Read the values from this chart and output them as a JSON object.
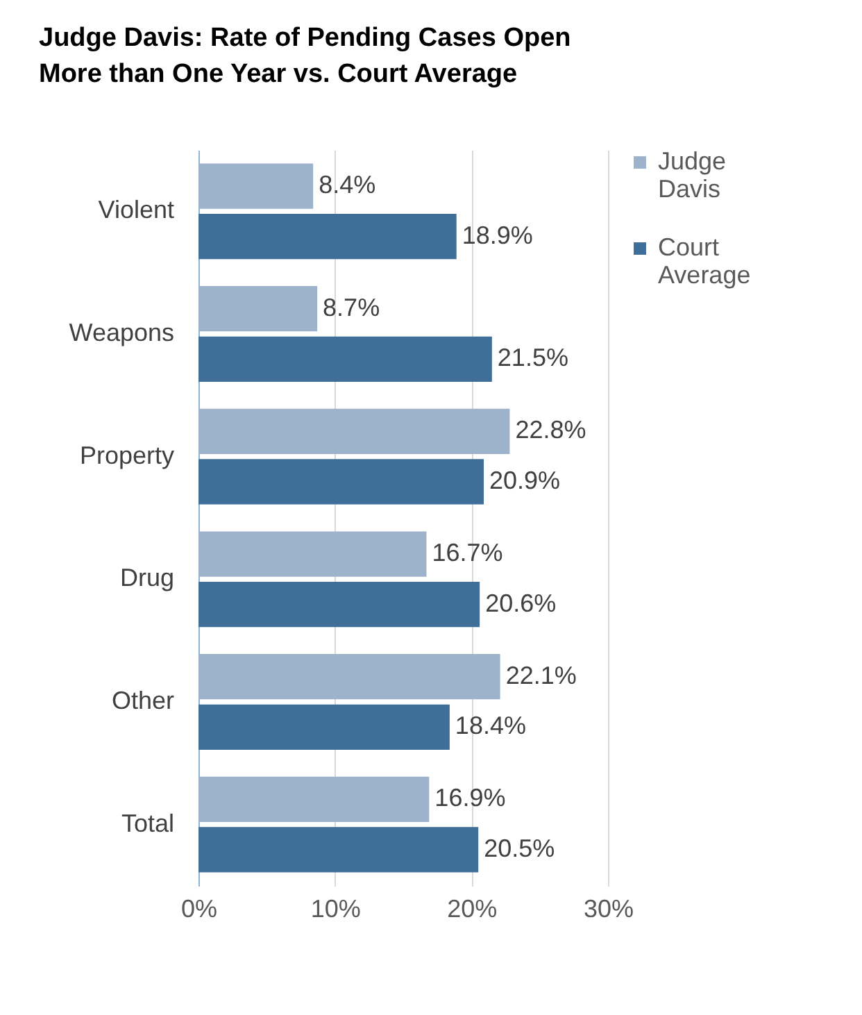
{
  "chart_data": {
    "type": "bar",
    "orientation": "horizontal",
    "title": "Judge Davis: Rate of Pending Cases Open More than One Year vs. Court Average",
    "categories": [
      "Violent",
      "Weapons",
      "Property",
      "Drug",
      "Other",
      "Total"
    ],
    "series": [
      {
        "name": "Judge Davis",
        "color": "#9db3cc",
        "values": [
          8.4,
          8.7,
          22.8,
          16.7,
          22.1,
          16.9
        ],
        "value_labels": [
          "8.4%",
          "8.7%",
          "22.8%",
          "16.7%",
          "22.1%",
          "16.9%"
        ]
      },
      {
        "name": "Court Average",
        "color": "#3f6e98",
        "values": [
          18.9,
          21.5,
          20.9,
          20.6,
          18.4,
          20.5
        ],
        "value_labels": [
          "18.9%",
          "21.5%",
          "20.9%",
          "20.6%",
          "18.4%",
          "20.5%"
        ]
      }
    ],
    "xlim": [
      0,
      30
    ],
    "xticks": [
      {
        "value": 0,
        "label": "0%"
      },
      {
        "value": 10,
        "label": "10%"
      },
      {
        "value": 20,
        "label": "20%"
      },
      {
        "value": 30,
        "label": "30%"
      }
    ],
    "grid": "x",
    "legend": "right"
  }
}
